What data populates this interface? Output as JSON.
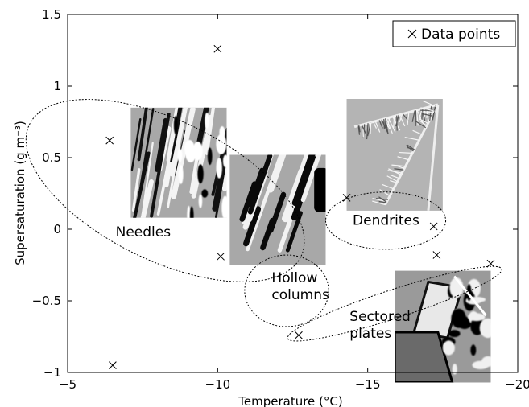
{
  "chart_data": {
    "type": "scatter",
    "xlabel": "Temperature  (°C)",
    "ylabel": "Supersaturation (g m⁻³)",
    "xlim": [
      -5,
      -20
    ],
    "ylim": [
      -1,
      1.5
    ],
    "xticks": [
      -5,
      -10,
      -15,
      -20
    ],
    "xtick_labels": [
      "−5",
      "−10",
      "−15",
      "−20"
    ],
    "yticks": [
      -1,
      -0.5,
      0,
      0.5,
      1,
      1.5
    ],
    "ytick_labels": [
      "−1",
      "−0.5",
      "0",
      "0.5",
      "1",
      "1.5"
    ],
    "grid": false,
    "legend_position": "top-right",
    "series": [
      {
        "name": "Data points",
        "marker": "x",
        "x": [
          -6.4,
          -6.5,
          -10.0,
          -10.1,
          -12.7,
          -14.3,
          -17.2,
          -17.3,
          -19.1
        ],
        "y": [
          0.62,
          -0.95,
          1.26,
          -0.19,
          -0.74,
          0.22,
          0.02,
          -0.18,
          -0.24
        ]
      }
    ],
    "regions": [
      {
        "label": "Needles",
        "cx": -8.25,
        "cy": 0.27,
        "rx": 5.3,
        "ry": 0.215,
        "rotate": -64
      },
      {
        "label": "Hollow columns",
        "cx": -12.3,
        "cy": -0.43,
        "rx": 1.4,
        "ry": 0.25,
        "rotate": 0
      },
      {
        "label": "Dendrites",
        "cx": -15.6,
        "cy": 0.06,
        "rx": 2.0,
        "ry": 0.2,
        "rotate": 0
      },
      {
        "label": "Sectored plates",
        "cx": -15.9,
        "cy": -0.52,
        "rx": 3.75,
        "ry": 0.1,
        "rotate": -18
      }
    ],
    "region_labels": [
      {
        "lines": [
          "Needles"
        ],
        "x": -6.6,
        "y": -0.05
      },
      {
        "lines": [
          "Hollow",
          "columns"
        ],
        "x": -11.8,
        "y": -0.37
      },
      {
        "lines": [
          "Dendrites"
        ],
        "x": -14.5,
        "y": 0.03
      },
      {
        "lines": [
          "Sectored",
          "plates"
        ],
        "x": -14.4,
        "y": -0.64
      }
    ],
    "photos": [
      {
        "name": "needles-photo",
        "kind": "needles",
        "x": -7.1,
        "y": 0.85,
        "w": 3.2,
        "h": 0.77
      },
      {
        "name": "hollow-columns-photo",
        "kind": "columns",
        "x": -10.4,
        "y": 0.52,
        "w": 3.2,
        "h": 0.77
      },
      {
        "name": "dendrites-photo",
        "kind": "dendrites",
        "x": -14.3,
        "y": 0.91,
        "w": 3.2,
        "h": 0.78
      },
      {
        "name": "sectored-plates-photo",
        "kind": "plates",
        "x": -15.9,
        "y": -0.29,
        "w": 3.2,
        "h": 0.78
      }
    ]
  }
}
